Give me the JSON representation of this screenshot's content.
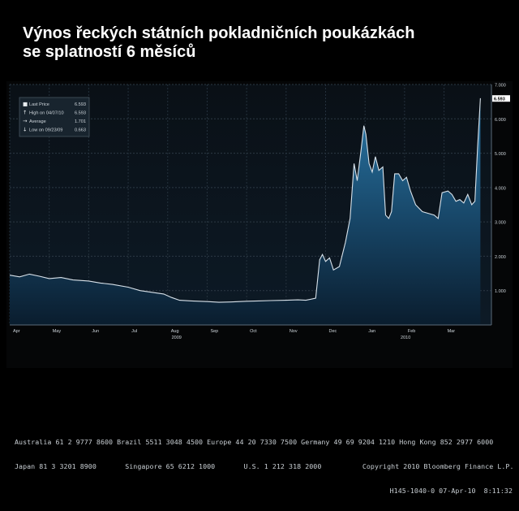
{
  "slide": {
    "title_line1": "Výnos  řeckých státních pokladničních poukázkách",
    "title_line2": "se splatností 6 měsíců"
  },
  "colors": {
    "background": "#000000",
    "plot_background": "#0b1620",
    "area_fill_top": "#1f5f85",
    "area_fill_bottom": "#0c2438",
    "line": "#d8e2ea",
    "last_price_box": "#ffffff",
    "text": "#ffffff"
  },
  "chart_data": {
    "type": "area",
    "title": "",
    "xlabel": "",
    "ylabel": "",
    "ylim": [
      0,
      7.0
    ],
    "y_ticks": [
      "1.000",
      "2.000",
      "3.000",
      "4.000",
      "5.000",
      "6.000",
      "7.000"
    ],
    "x_ticks": [
      "Apr",
      "May",
      "Jun",
      "Jul",
      "Aug",
      "Sep",
      "Oct",
      "Nov",
      "Dec",
      "Jan",
      "Feb",
      "Mar"
    ],
    "year_labels": [
      "2009",
      "2010"
    ],
    "last_price_label": "6.593",
    "grid": true,
    "legend_position": "top-left",
    "legend": [
      {
        "icon": "box",
        "label": "Last Price",
        "value": "6.593"
      },
      {
        "icon": "arrow-up",
        "label": "High on 04/07/10",
        "value": "6.593"
      },
      {
        "icon": "arrow-flat",
        "label": "Average",
        "value": "1.701"
      },
      {
        "icon": "arrow-down",
        "label": "Low on 09/23/09",
        "value": "0.663"
      }
    ],
    "x_range": [
      0,
      12.2
    ],
    "points": [
      [
        0.0,
        1.45
      ],
      [
        0.25,
        1.4
      ],
      [
        0.5,
        1.48
      ],
      [
        0.75,
        1.42
      ],
      [
        1.0,
        1.35
      ],
      [
        1.3,
        1.38
      ],
      [
        1.6,
        1.31
      ],
      [
        2.0,
        1.28
      ],
      [
        2.3,
        1.22
      ],
      [
        2.6,
        1.18
      ],
      [
        3.0,
        1.1
      ],
      [
        3.3,
        1.0
      ],
      [
        3.6,
        0.95
      ],
      [
        3.9,
        0.9
      ],
      [
        4.1,
        0.8
      ],
      [
        4.3,
        0.72
      ],
      [
        4.6,
        0.7
      ],
      [
        5.0,
        0.68
      ],
      [
        5.3,
        0.66
      ],
      [
        5.6,
        0.67
      ],
      [
        6.0,
        0.69
      ],
      [
        6.3,
        0.7
      ],
      [
        6.6,
        0.71
      ],
      [
        7.0,
        0.72
      ],
      [
        7.3,
        0.73
      ],
      [
        7.5,
        0.72
      ],
      [
        7.75,
        0.78
      ],
      [
        7.85,
        1.9
      ],
      [
        7.92,
        2.05
      ],
      [
        8.0,
        1.85
      ],
      [
        8.1,
        1.95
      ],
      [
        8.2,
        1.6
      ],
      [
        8.35,
        1.7
      ],
      [
        8.5,
        2.4
      ],
      [
        8.62,
        3.1
      ],
      [
        8.72,
        4.7
      ],
      [
        8.8,
        4.2
      ],
      [
        8.9,
        5.1
      ],
      [
        8.97,
        5.8
      ],
      [
        9.02,
        5.55
      ],
      [
        9.1,
        4.7
      ],
      [
        9.18,
        4.45
      ],
      [
        9.26,
        4.9
      ],
      [
        9.35,
        4.5
      ],
      [
        9.45,
        4.6
      ],
      [
        9.52,
        3.2
      ],
      [
        9.6,
        3.1
      ],
      [
        9.67,
        3.3
      ],
      [
        9.75,
        4.4
      ],
      [
        9.85,
        4.4
      ],
      [
        9.95,
        4.2
      ],
      [
        10.05,
        4.3
      ],
      [
        10.15,
        3.9
      ],
      [
        10.28,
        3.5
      ],
      [
        10.45,
        3.3
      ],
      [
        10.6,
        3.25
      ],
      [
        10.75,
        3.2
      ],
      [
        10.85,
        3.1
      ],
      [
        10.95,
        3.85
      ],
      [
        11.1,
        3.9
      ],
      [
        11.2,
        3.8
      ],
      [
        11.3,
        3.6
      ],
      [
        11.4,
        3.65
      ],
      [
        11.5,
        3.55
      ],
      [
        11.6,
        3.8
      ],
      [
        11.7,
        3.5
      ],
      [
        11.78,
        3.6
      ],
      [
        11.85,
        5.2
      ],
      [
        11.92,
        6.6
      ]
    ]
  },
  "footer": {
    "line1": "Australia 61 2 9777 8600 Brazil 5511 3048 4500 Europe 44 20 7330 7500 Germany 49 69 9204 1210 Hong Kong 852 2977 6000",
    "line2": "Japan 81 3 3201 8900       Singapore 65 6212 1000       U.S. 1 212 318 2000          Copyright 2010 Bloomberg Finance L.P.",
    "line3": "H145-1040-0 07-Apr-10  8:11:32"
  }
}
